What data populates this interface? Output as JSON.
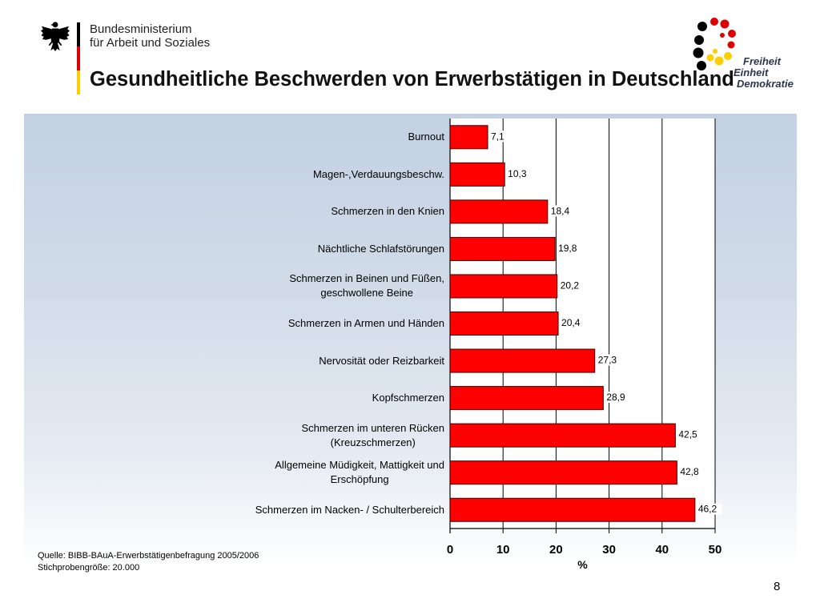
{
  "header": {
    "ministry_line1": "Bundesministerium",
    "ministry_line2": "für Arbeit und Soziales",
    "motto": {
      "line1": "Freiheit",
      "line2": "Einheit",
      "line3": "Demokratie"
    }
  },
  "chart_data": {
    "type": "bar",
    "orientation": "horizontal",
    "title": "Gesundheitliche Beschwerden von Erwerbstätigen in Deutschland",
    "categories": [
      "Burnout",
      "Magen-,Verdauungsbeschw.",
      "Schmerzen in den Knien",
      "Nächtliche Schlafstörungen",
      "Schmerzen in Beinen und Füßen,\ngeschwollene Beine",
      "Schmerzen in Armen und Händen",
      "Nervosität oder Reizbarkeit",
      "Kopfschmerzen",
      "Schmerzen im unteren Rücken\n(Kreuzschmerzen)",
      "Allgemeine Müdigkeit, Mattigkeit und\nErschöpfung",
      "Schmerzen im Nacken- / Schulterbereich"
    ],
    "values": [
      7.1,
      10.3,
      18.4,
      19.8,
      20.2,
      20.4,
      27.3,
      28.9,
      42.5,
      42.8,
      46.2
    ],
    "data_labels": [
      "7,1",
      "10,3",
      "18,4",
      "19,8",
      "20,2",
      "20,4",
      "27,3",
      "28,9",
      "42,5",
      "42,8",
      "46,2"
    ],
    "xlabel": "%",
    "xlim": [
      0,
      50
    ],
    "x_ticks": [
      0,
      10,
      20,
      30,
      40,
      50
    ],
    "grid": true,
    "legend": false
  },
  "footer": {
    "source": "Quelle: BIBB-BAuA-Erwerbstätigenbefragung 2005/2006",
    "sample_size": "Stichprobengröße: 20.000",
    "page_number": "8"
  },
  "colors": {
    "bar_fill": "#ff0000",
    "bar_outline": "#3a0000",
    "flag_black": "#000000",
    "flag_red": "#dd0000",
    "flag_gold": "#ffce00",
    "motto_text": "#2e3350"
  }
}
